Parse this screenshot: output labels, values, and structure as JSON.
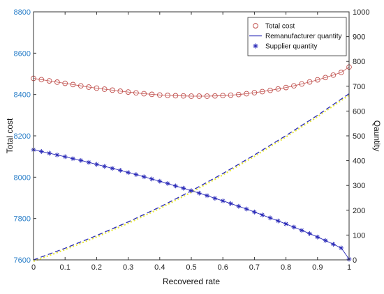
{
  "chart_data": {
    "type": "line",
    "xlabel": "Recovered rate",
    "ylabel_left": "Total cost",
    "ylabel_right": "Qauntity",
    "xlim": [
      0,
      1
    ],
    "ylim_left": [
      7600,
      8800
    ],
    "ylim_right": [
      0,
      1000
    ],
    "x_ticks": [
      "0",
      "0.1",
      "0.2",
      "0.3",
      "0.4",
      "0.5",
      "0.6",
      "0.7",
      "0.8",
      "0.9",
      "1"
    ],
    "y_ticks_left": [
      "7600",
      "7800",
      "8000",
      "8200",
      "8400",
      "8600",
      "8800"
    ],
    "y_ticks_right": [
      "0",
      "100",
      "200",
      "300",
      "400",
      "500",
      "600",
      "700",
      "800",
      "900",
      "1000"
    ],
    "grid": false,
    "legend_position": "top-right",
    "legend": [
      {
        "label": "Total cost",
        "marker": "circle",
        "color": "#c0504d"
      },
      {
        "label": "Remanufacturer quantity",
        "marker": "line",
        "color": "#2a2ab8"
      },
      {
        "label": "Supplier quantity",
        "marker": "asterisk",
        "color": "#2a2ab8"
      }
    ],
    "series": [
      {
        "name": "Total cost",
        "axis": "left",
        "color": "#c0504d",
        "marker": "circle",
        "x": [
          0,
          0.025,
          0.05,
          0.075,
          0.1,
          0.125,
          0.15,
          0.175,
          0.2,
          0.225,
          0.25,
          0.275,
          0.3,
          0.325,
          0.35,
          0.375,
          0.4,
          0.425,
          0.45,
          0.475,
          0.5,
          0.525,
          0.55,
          0.575,
          0.6,
          0.625,
          0.65,
          0.675,
          0.7,
          0.725,
          0.75,
          0.775,
          0.8,
          0.825,
          0.85,
          0.875,
          0.9,
          0.925,
          0.95,
          0.975,
          1
        ],
        "y": [
          8478,
          8472,
          8466,
          8460,
          8454,
          8448,
          8442,
          8436,
          8431,
          8426,
          8421,
          8416,
          8412,
          8408,
          8404,
          8401,
          8398,
          8396,
          8394,
          8393,
          8392,
          8392,
          8392,
          8393,
          8395,
          8397,
          8400,
          8404,
          8409,
          8414,
          8420,
          8427,
          8434,
          8442,
          8451,
          8461,
          8471,
          8482,
          8494,
          8507,
          8533
        ]
      },
      {
        "name": "Remanufacturer quantity",
        "axis": "right",
        "color": "#2a2ab8",
        "marker": "line",
        "x": [
          0,
          0.1,
          0.2,
          0.3,
          0.4,
          0.5,
          0.6,
          0.7,
          0.8,
          0.9,
          1
        ],
        "y": [
          0,
          47,
          98,
          153,
          213,
          278,
          348,
          423,
          501,
          583,
          670
        ]
      },
      {
        "name": "Supplier quantity",
        "axis": "right",
        "color": "#2a2ab8",
        "marker": "asterisk",
        "x": [
          0,
          0.025,
          0.05,
          0.075,
          0.1,
          0.125,
          0.15,
          0.175,
          0.2,
          0.225,
          0.25,
          0.275,
          0.3,
          0.325,
          0.35,
          0.375,
          0.4,
          0.425,
          0.45,
          0.475,
          0.5,
          0.525,
          0.55,
          0.575,
          0.6,
          0.625,
          0.65,
          0.675,
          0.7,
          0.725,
          0.75,
          0.775,
          0.8,
          0.825,
          0.85,
          0.875,
          0.9,
          0.925,
          0.95,
          0.975,
          1
        ],
        "y": [
          444,
          437,
          430,
          423,
          416,
          408,
          401,
          393,
          385,
          377,
          369,
          361,
          352,
          344,
          335,
          326,
          317,
          308,
          298,
          289,
          279,
          269,
          259,
          248,
          238,
          227,
          216,
          205,
          193,
          181,
          169,
          157,
          145,
          132,
          119,
          106,
          92,
          78,
          63,
          48,
          3
        ]
      }
    ]
  }
}
